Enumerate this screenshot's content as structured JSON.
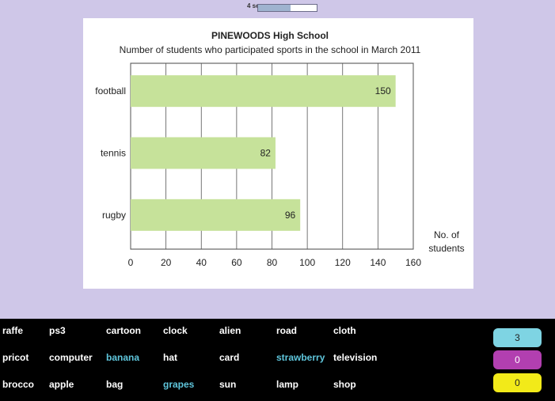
{
  "timer": {
    "label": "4 sec.",
    "progress": 0.55
  },
  "chart_data": {
    "type": "bar",
    "orientation": "horizontal",
    "title": "PINEWOODS High School",
    "subtitle": "Number of students who participated sports in the school in March 2011",
    "xlabel": "No. of students",
    "categories": [
      "football",
      "tennis",
      "rugby"
    ],
    "values": [
      150,
      82,
      96
    ],
    "xlim": [
      0,
      160
    ],
    "xticks": [
      0,
      20,
      40,
      60,
      80,
      100,
      120,
      140,
      160
    ],
    "grid": true,
    "bar_color": "#c6e29a"
  },
  "words": [
    [
      "raffe",
      "ps3",
      "cartoon",
      "clock",
      "alien",
      "road",
      "cloth"
    ],
    [
      "pricot",
      "computer",
      "banana",
      "hat",
      "card",
      "strawberry",
      "television"
    ],
    [
      "brocco",
      "apple",
      "bag",
      "grapes",
      "sun",
      "lamp",
      "shop"
    ]
  ],
  "highlighted_words": [
    "banana",
    "strawberry",
    "grapes"
  ],
  "scores": [
    {
      "value": "3",
      "color": "#7ed4e3",
      "text_color": "#222222"
    },
    {
      "value": "0",
      "color": "#b23fb0",
      "text_color": "#ffffff"
    },
    {
      "value": "0",
      "color": "#f2ea19",
      "text_color": "#222222"
    }
  ]
}
